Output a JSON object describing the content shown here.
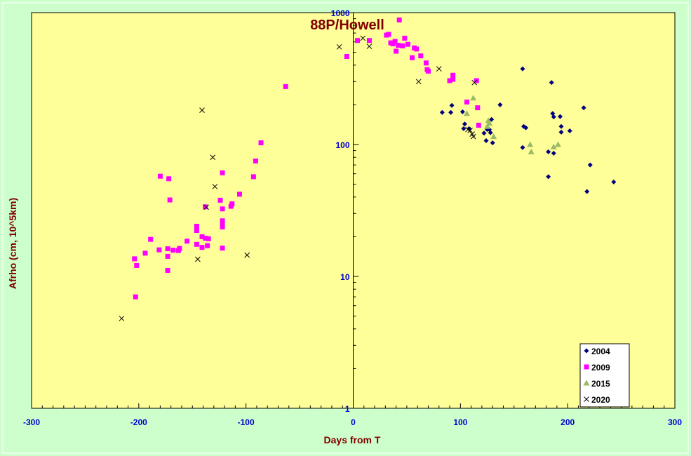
{
  "chart_data": {
    "type": "scatter",
    "title": "88P/Howell",
    "xlabel": "Days from T",
    "ylabel": "Afrho (cm, 10^5km)",
    "xlim": [
      -300,
      300
    ],
    "ylim": [
      1,
      1000
    ],
    "y_scale": "log",
    "x_ticks": [
      -300,
      -200,
      -100,
      0,
      100,
      200,
      300
    ],
    "x_tick_labels": [
      "-300",
      "-200",
      "-100",
      "0",
      "100",
      "200",
      "300"
    ],
    "y_ticks": [
      1,
      10,
      100,
      1000
    ],
    "y_tick_labels": [
      "1",
      "10",
      "100",
      "1000"
    ],
    "grid": false,
    "legend_position": "bottom-right",
    "colors": {
      "background": "#ccffcc",
      "plot_area": "#ffff99",
      "title": "#800000",
      "axis_label": "#800000",
      "tick_label": "#0000cc"
    },
    "series": [
      {
        "name": "2004",
        "marker": "diamond",
        "color": "#000080",
        "points": [
          [
            83,
            175
          ],
          [
            91,
            175
          ],
          [
            92,
            198
          ],
          [
            102,
            177
          ],
          [
            103,
            132
          ],
          [
            104,
            143
          ],
          [
            108,
            132
          ],
          [
            122,
            122
          ],
          [
            124,
            107
          ],
          [
            125,
            130
          ],
          [
            127,
            130
          ],
          [
            128,
            123
          ],
          [
            129,
            155
          ],
          [
            130,
            103
          ],
          [
            137,
            200
          ],
          [
            158,
            375
          ],
          [
            158,
            95
          ],
          [
            159,
            137
          ],
          [
            161,
            134
          ],
          [
            182,
            88
          ],
          [
            182,
            57
          ],
          [
            185,
            295
          ],
          [
            186,
            172
          ],
          [
            187,
            86
          ],
          [
            187,
            162
          ],
          [
            193,
            163
          ],
          [
            194,
            137
          ],
          [
            194,
            124
          ],
          [
            202,
            127
          ],
          [
            215,
            190
          ],
          [
            218,
            44
          ],
          [
            221,
            70
          ],
          [
            243,
            52
          ]
        ]
      },
      {
        "name": "2009",
        "marker": "square",
        "color": "#ff00ff",
        "points": [
          [
            -203,
            7.0
          ],
          [
            -204,
            13.6
          ],
          [
            -202,
            12.1
          ],
          [
            -194,
            15.0
          ],
          [
            -189,
            19.1
          ],
          [
            -181,
            15.9
          ],
          [
            -180,
            57.5
          ],
          [
            -173,
            16.2
          ],
          [
            -173,
            14.2
          ],
          [
            -173,
            11.1
          ],
          [
            -172,
            55
          ],
          [
            -171,
            38
          ],
          [
            -168,
            15.8
          ],
          [
            -163,
            15.7
          ],
          [
            -162,
            16.3
          ],
          [
            -155,
            18.5
          ],
          [
            -146,
            17.5
          ],
          [
            -146,
            22.3
          ],
          [
            -146,
            24.0
          ],
          [
            -141,
            20.0
          ],
          [
            -141,
            16.6
          ],
          [
            -138,
            19.5
          ],
          [
            -138,
            33.7
          ],
          [
            -136,
            17.1
          ],
          [
            -135,
            19.3
          ],
          [
            -124,
            37.8
          ],
          [
            -122,
            16.4
          ],
          [
            -122,
            61
          ],
          [
            -122,
            32.5
          ],
          [
            -122,
            26.4
          ],
          [
            -122,
            25.1
          ],
          [
            -122,
            23.7
          ],
          [
            -114,
            34.0
          ],
          [
            -113,
            35.5
          ],
          [
            -106,
            42
          ],
          [
            -93,
            57
          ],
          [
            -91,
            75
          ],
          [
            -86,
            103
          ],
          [
            -63,
            275
          ],
          [
            -6,
            465
          ],
          [
            4,
            615
          ],
          [
            15,
            615
          ],
          [
            31,
            675
          ],
          [
            33,
            685
          ],
          [
            35,
            590
          ],
          [
            37,
            580
          ],
          [
            39,
            605
          ],
          [
            40,
            510
          ],
          [
            42,
            565
          ],
          [
            43,
            880
          ],
          [
            46,
            560
          ],
          [
            48,
            640
          ],
          [
            51,
            575
          ],
          [
            55,
            455
          ],
          [
            57,
            540
          ],
          [
            59,
            530
          ],
          [
            63,
            470
          ],
          [
            68,
            415
          ],
          [
            69,
            370
          ],
          [
            70,
            360
          ],
          [
            90,
            305
          ],
          [
            93,
            312
          ],
          [
            93,
            335
          ],
          [
            106,
            210
          ],
          [
            115,
            305
          ],
          [
            116,
            190
          ],
          [
            117,
            140
          ]
        ]
      },
      {
        "name": "2015",
        "marker": "triangle",
        "color": "#99bb66",
        "points": [
          [
            106,
            172
          ],
          [
            112,
            225
          ],
          [
            125,
            137
          ],
          [
            126,
            152
          ],
          [
            127,
            145
          ],
          [
            131,
            115
          ],
          [
            165,
            100
          ],
          [
            166,
            88
          ],
          [
            187,
            96
          ],
          [
            191,
            100
          ]
        ]
      },
      {
        "name": "2020",
        "marker": "x",
        "color": "#000000",
        "points": [
          [
            -216,
            4.8
          ],
          [
            -145,
            13.5
          ],
          [
            -141,
            182
          ],
          [
            -137,
            33.5
          ],
          [
            -131,
            80
          ],
          [
            -129,
            48
          ],
          [
            -99,
            14.5
          ],
          [
            -13,
            550
          ],
          [
            9,
            640
          ],
          [
            15,
            555
          ],
          [
            61,
            300
          ],
          [
            80,
            375
          ],
          [
            107,
            130
          ],
          [
            109,
            128
          ],
          [
            111,
            120
          ],
          [
            112,
            115
          ],
          [
            113,
            295
          ]
        ]
      }
    ]
  }
}
